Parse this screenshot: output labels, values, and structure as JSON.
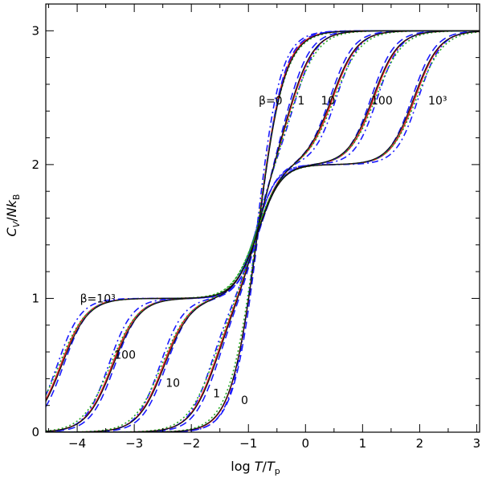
{
  "chart_data": {
    "type": "line",
    "title": "",
    "xlabel_parts": [
      "log ",
      "T",
      "/",
      "T",
      "p"
    ],
    "ylabel_parts": [
      "C",
      "V",
      "/",
      "N",
      "k",
      "B"
    ],
    "xlim": [
      -4.55,
      3.05
    ],
    "ylim": [
      0,
      3.2
    ],
    "xticks": [
      -4,
      -3,
      -2,
      -1,
      0,
      1,
      2,
      3
    ],
    "yticks": [
      0,
      1,
      2,
      3
    ],
    "xtick_labels": [
      "−4",
      "−3",
      "−2",
      "−1",
      "0",
      "1",
      "2",
      "3"
    ],
    "ytick_labels": [
      "0",
      "1",
      "2",
      "3"
    ],
    "beta_values": [
      0,
      1,
      10,
      100,
      1000
    ],
    "upper_labels": [
      {
        "text": "β=0",
        "x": -0.82,
        "y": 2.45
      },
      {
        "text": "1",
        "x": -0.14,
        "y": 2.45
      },
      {
        "text": "10",
        "x": 0.27,
        "y": 2.45
      },
      {
        "text": "100",
        "x": 1.15,
        "y": 2.45
      },
      {
        "text": "10³",
        "x": 2.15,
        "y": 2.45
      }
    ],
    "lower_labels": [
      {
        "text": "β=10³",
        "x": -3.95,
        "y": 0.97
      },
      {
        "text": "100",
        "x": -3.35,
        "y": 0.55
      },
      {
        "text": "10",
        "x": -2.45,
        "y": 0.34
      },
      {
        "text": "1",
        "x": -1.62,
        "y": 0.26
      },
      {
        "text": "0",
        "x": -1.13,
        "y": 0.21
      }
    ],
    "series": [
      {
        "name": "solid",
        "color": "#e02020",
        "dash": ""
      },
      {
        "name": "dashed",
        "color": "#1a1aff",
        "dash": "9,5"
      },
      {
        "name": "dash-dot",
        "color": "#1a1aff",
        "dash": "8,4,2,4"
      },
      {
        "name": "dotted",
        "color": "#22aa22",
        "dash": "2,3"
      },
      {
        "name": "thin",
        "color": "#111111",
        "dash": ""
      }
    ]
  }
}
